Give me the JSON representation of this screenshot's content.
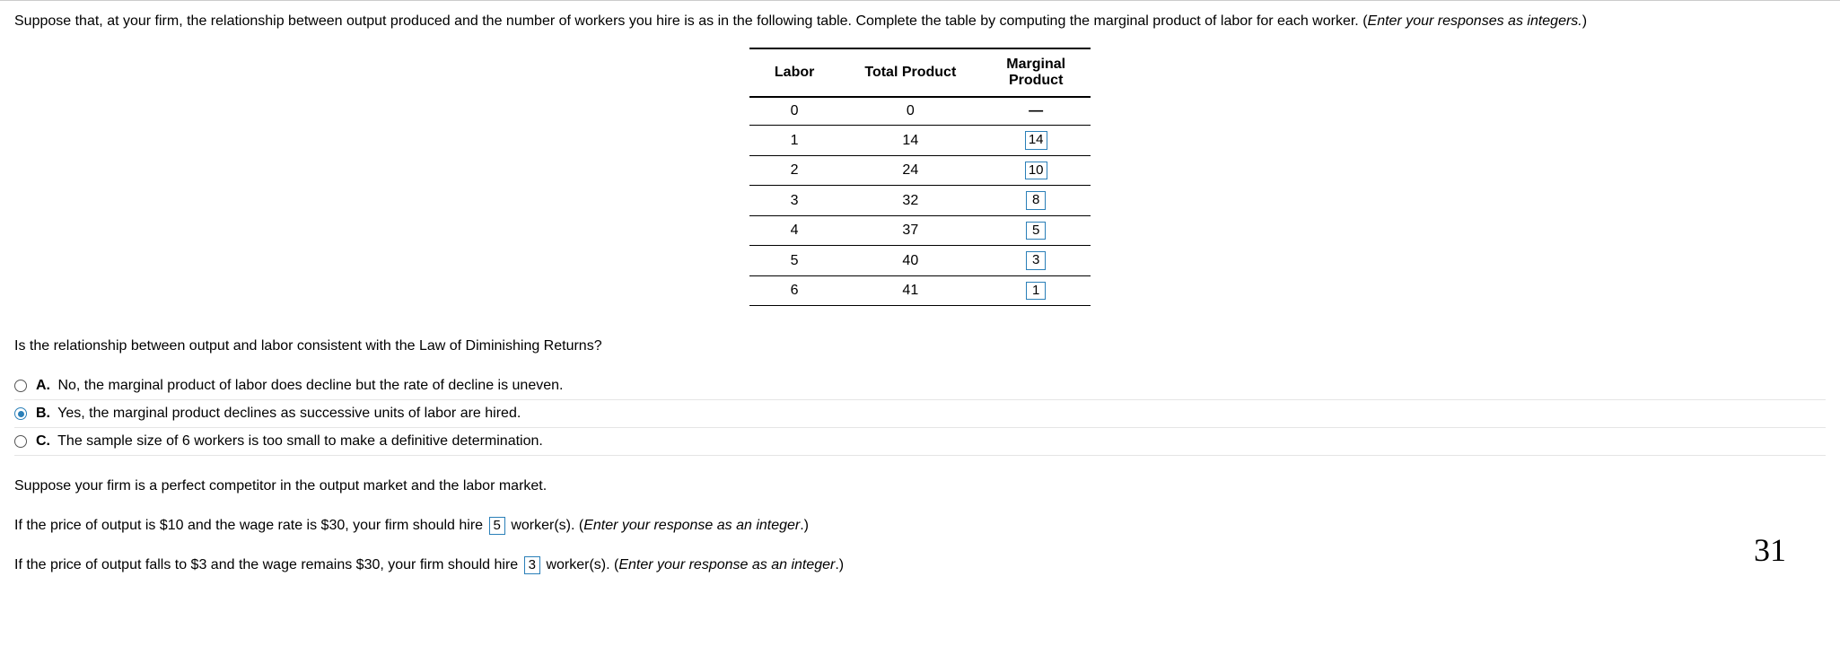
{
  "prompt": {
    "text_a": "Suppose that, at your firm, the relationship between output produced and the number of workers you hire is as in the following table. Complete the table by computing the marginal product of labor for each worker. (",
    "text_b": "Enter your responses as integers.",
    "text_c": ")"
  },
  "table": {
    "headers": {
      "c1": "Labor",
      "c2": "Total Product",
      "c3a": "Marginal",
      "c3b": "Product"
    },
    "rows": [
      {
        "labor": "0",
        "tp": "0",
        "mp": "—",
        "dash": true
      },
      {
        "labor": "1",
        "tp": "14",
        "mp": "14"
      },
      {
        "labor": "2",
        "tp": "24",
        "mp": "10"
      },
      {
        "labor": "3",
        "tp": "32",
        "mp": "8"
      },
      {
        "labor": "4",
        "tp": "37",
        "mp": "5"
      },
      {
        "labor": "5",
        "tp": "40",
        "mp": "3"
      },
      {
        "labor": "6",
        "tp": "41",
        "mp": "1"
      }
    ]
  },
  "q_diminishing": "Is the relationship between output and labor consistent with the Law of Diminishing Returns?",
  "options": [
    {
      "letter": "A.",
      "text": "No, the marginal product of labor does decline but the rate of decline is uneven.",
      "selected": false
    },
    {
      "letter": "B.",
      "text": "Yes, the marginal product declines as successive units of labor are hired.",
      "selected": true
    },
    {
      "letter": "C.",
      "text": "The sample size of 6 workers is too small to make a definitive determination.",
      "selected": false
    }
  ],
  "p_competitor": "Suppose your firm is a perfect competitor in the output market and the labor market.",
  "q_hire1": {
    "pre": "If the price of output is $10 and the wage rate is $30, your firm should hire ",
    "ans": "5",
    "mid": " worker(s). (",
    "ital": "Enter your response as an integer",
    "post": ".)"
  },
  "q_hire2": {
    "pre": "If the price of output falls to $3 and the wage remains $30, your firm should hire ",
    "ans": "3",
    "mid": " worker(s).  (",
    "ital": "Enter your response as an integer",
    "post": ".)"
  },
  "handwritten": "31"
}
